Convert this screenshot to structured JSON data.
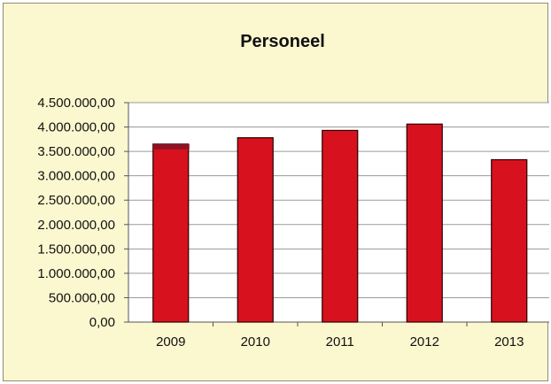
{
  "chart_data": {
    "type": "bar",
    "title": "Personeel",
    "categories": [
      "2009",
      "2010",
      "2011",
      "2012",
      "2013"
    ],
    "values": [
      3650000,
      3780000,
      3930000,
      4060000,
      3330000
    ],
    "y_ticks": [
      "0,00",
      "500.000,00",
      "1.000.000,00",
      "1.500.000,00",
      "2.000.000,00",
      "2.500.000,00",
      "3.000.000,00",
      "3.500.000,00",
      "4.000.000,00",
      "4.500.000,00"
    ],
    "ylim": [
      0,
      4500000
    ],
    "grid": true,
    "legend": "none",
    "colors": {
      "bar": "#d7121e",
      "bar_edge": "#2a0000",
      "highlight_cap": "#8f1122",
      "background": "#fbf7cf",
      "plot_area": "#ffffff"
    }
  }
}
